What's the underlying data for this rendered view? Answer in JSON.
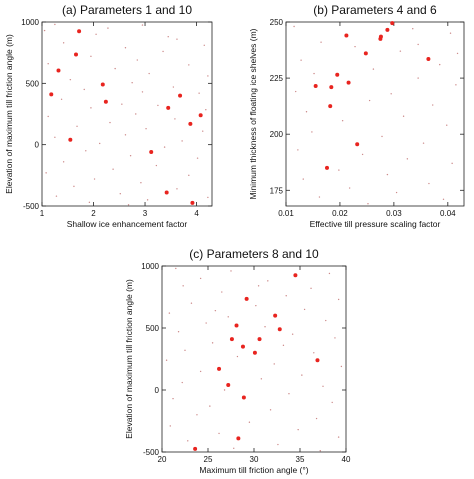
{
  "chart_data": [
    {
      "type": "scatter",
      "title": "(a) Parameters 1 and 10",
      "xlabel": "Shallow ice enhancement factor",
      "ylabel": "Elevation of maximum till friction angle (m)",
      "xlim": [
        1,
        4.3
      ],
      "ylim": [
        -500,
        1000
      ],
      "xticks": [
        1,
        2,
        3,
        4
      ],
      "yticks": [
        -500,
        0,
        500,
        1000
      ],
      "highlight_color": "#e8241f",
      "background_color": "#cc8a8a",
      "highlight_points": [
        {
          "x": 1.72,
          "y": 925
        },
        {
          "x": 1.66,
          "y": 735
        },
        {
          "x": 1.32,
          "y": 605
        },
        {
          "x": 2.18,
          "y": 490
        },
        {
          "x": 1.18,
          "y": 410
        },
        {
          "x": 2.24,
          "y": 350
        },
        {
          "x": 3.68,
          "y": 400
        },
        {
          "x": 3.45,
          "y": 300
        },
        {
          "x": 4.08,
          "y": 240
        },
        {
          "x": 3.88,
          "y": 170
        },
        {
          "x": 1.55,
          "y": 40
        },
        {
          "x": 3.12,
          "y": -60
        },
        {
          "x": 3.42,
          "y": -390
        },
        {
          "x": 3.92,
          "y": -475
        }
      ],
      "background_points": [
        {
          "x": 1.25,
          "y": 980
        },
        {
          "x": 2.95,
          "y": 975
        },
        {
          "x": 1.05,
          "y": 930
        },
        {
          "x": 2.05,
          "y": 900
        },
        {
          "x": 3.62,
          "y": 860
        },
        {
          "x": 1.42,
          "y": 830
        },
        {
          "x": 4.15,
          "y": 810
        },
        {
          "x": 2.62,
          "y": 790
        },
        {
          "x": 3.35,
          "y": 760
        },
        {
          "x": 1.95,
          "y": 720
        },
        {
          "x": 2.85,
          "y": 690
        },
        {
          "x": 1.12,
          "y": 660
        },
        {
          "x": 3.85,
          "y": 650
        },
        {
          "x": 2.42,
          "y": 620
        },
        {
          "x": 3.08,
          "y": 580
        },
        {
          "x": 4.22,
          "y": 560
        },
        {
          "x": 1.55,
          "y": 530
        },
        {
          "x": 2.75,
          "y": 505
        },
        {
          "x": 3.55,
          "y": 470
        },
        {
          "x": 1.82,
          "y": 450
        },
        {
          "x": 2.95,
          "y": 430
        },
        {
          "x": 4.05,
          "y": 420
        },
        {
          "x": 1.38,
          "y": 370
        },
        {
          "x": 2.55,
          "y": 330
        },
        {
          "x": 3.25,
          "y": 320
        },
        {
          "x": 1.95,
          "y": 300
        },
        {
          "x": 4.18,
          "y": 285
        },
        {
          "x": 2.82,
          "y": 250
        },
        {
          "x": 1.12,
          "y": 230
        },
        {
          "x": 3.58,
          "y": 210
        },
        {
          "x": 2.32,
          "y": 180
        },
        {
          "x": 1.68,
          "y": 150
        },
        {
          "x": 3.02,
          "y": 130
        },
        {
          "x": 4.12,
          "y": 110
        },
        {
          "x": 2.62,
          "y": 80
        },
        {
          "x": 1.25,
          "y": 60
        },
        {
          "x": 3.72,
          "y": 30
        },
        {
          "x": 2.12,
          "y": 10
        },
        {
          "x": 3.38,
          "y": -20
        },
        {
          "x": 1.85,
          "y": -50
        },
        {
          "x": 2.72,
          "y": -90
        },
        {
          "x": 4.02,
          "y": -110
        },
        {
          "x": 1.42,
          "y": -140
        },
        {
          "x": 3.22,
          "y": -170
        },
        {
          "x": 2.38,
          "y": -200
        },
        {
          "x": 1.08,
          "y": -230
        },
        {
          "x": 3.85,
          "y": -250
        },
        {
          "x": 2.02,
          "y": -280
        },
        {
          "x": 2.92,
          "y": -310
        },
        {
          "x": 1.62,
          "y": -340
        },
        {
          "x": 3.62,
          "y": -360
        },
        {
          "x": 2.52,
          "y": -400
        },
        {
          "x": 1.28,
          "y": -420
        },
        {
          "x": 4.22,
          "y": -430
        },
        {
          "x": 3.05,
          "y": -450
        },
        {
          "x": 1.92,
          "y": -470
        },
        {
          "x": 2.68,
          "y": -490
        },
        {
          "x": 3.45,
          "y": 880
        },
        {
          "x": 2.28,
          "y": 950
        }
      ]
    },
    {
      "type": "scatter",
      "title": "(b) Parameters 4 and 6",
      "xlabel": "Effective till pressure scaling factor",
      "ylabel": "Minimum thickness of floating ice shelves (m)",
      "xlim": [
        0.01,
        0.043
      ],
      "ylim": [
        168,
        250
      ],
      "xticks": [
        0.01,
        0.02,
        0.03,
        0.04
      ],
      "xtick_labels": [
        "0.01",
        "0.02",
        "0.03",
        "0.04"
      ],
      "yticks": [
        175,
        200,
        225,
        250
      ],
      "highlight_color": "#e8241f",
      "background_color": "#cc8a8a",
      "highlight_points": [
        {
          "x": 0.0297,
          "y": 249.5
        },
        {
          "x": 0.0212,
          "y": 244
        },
        {
          "x": 0.0275,
          "y": 242.5
        },
        {
          "x": 0.0276,
          "y": 243.5
        },
        {
          "x": 0.0288,
          "y": 246.5
        },
        {
          "x": 0.0248,
          "y": 236
        },
        {
          "x": 0.0364,
          "y": 233.5
        },
        {
          "x": 0.0195,
          "y": 226.5
        },
        {
          "x": 0.0155,
          "y": 221.5
        },
        {
          "x": 0.0184,
          "y": 221
        },
        {
          "x": 0.0216,
          "y": 223
        },
        {
          "x": 0.0182,
          "y": 212.5
        },
        {
          "x": 0.0232,
          "y": 195.5
        },
        {
          "x": 0.0176,
          "y": 185
        }
      ],
      "background_points": [
        {
          "x": 0.0115,
          "y": 248
        },
        {
          "x": 0.0335,
          "y": 247
        },
        {
          "x": 0.0405,
          "y": 245
        },
        {
          "x": 0.0165,
          "y": 241
        },
        {
          "x": 0.0228,
          "y": 239
        },
        {
          "x": 0.0312,
          "y": 237
        },
        {
          "x": 0.0128,
          "y": 233
        },
        {
          "x": 0.0385,
          "y": 231
        },
        {
          "x": 0.0262,
          "y": 229
        },
        {
          "x": 0.0152,
          "y": 227
        },
        {
          "x": 0.0345,
          "y": 225
        },
        {
          "x": 0.0415,
          "y": 222
        },
        {
          "x": 0.0118,
          "y": 219
        },
        {
          "x": 0.0295,
          "y": 218
        },
        {
          "x": 0.0255,
          "y": 215
        },
        {
          "x": 0.0372,
          "y": 213
        },
        {
          "x": 0.0138,
          "y": 210
        },
        {
          "x": 0.0318,
          "y": 208
        },
        {
          "x": 0.0205,
          "y": 206
        },
        {
          "x": 0.0398,
          "y": 204
        },
        {
          "x": 0.0148,
          "y": 201
        },
        {
          "x": 0.0278,
          "y": 199
        },
        {
          "x": 0.0355,
          "y": 196
        },
        {
          "x": 0.0122,
          "y": 193
        },
        {
          "x": 0.0242,
          "y": 191
        },
        {
          "x": 0.0325,
          "y": 189
        },
        {
          "x": 0.0408,
          "y": 187
        },
        {
          "x": 0.0198,
          "y": 184
        },
        {
          "x": 0.0288,
          "y": 182
        },
        {
          "x": 0.0132,
          "y": 180
        },
        {
          "x": 0.0365,
          "y": 178
        },
        {
          "x": 0.0218,
          "y": 176
        },
        {
          "x": 0.0305,
          "y": 174
        },
        {
          "x": 0.0162,
          "y": 172
        },
        {
          "x": 0.0392,
          "y": 171
        },
        {
          "x": 0.0252,
          "y": 169
        },
        {
          "x": 0.0345,
          "y": 240
        },
        {
          "x": 0.0418,
          "y": 236
        }
      ]
    },
    {
      "type": "scatter",
      "title": "(c) Parameters 8 and 10",
      "xlabel": "Maximum till friction angle (°)",
      "ylabel": "Elevation of maximum till friction angle (m)",
      "xlim": [
        20,
        40
      ],
      "ylim": [
        -500,
        1000
      ],
      "xticks": [
        20,
        25,
        30,
        35,
        40
      ],
      "yticks": [
        -500,
        0,
        500,
        1000
      ],
      "highlight_color": "#e8241f",
      "background_color": "#cc8a8a",
      "highlight_points": [
        {
          "x": 34.5,
          "y": 925
        },
        {
          "x": 29.2,
          "y": 735
        },
        {
          "x": 32.3,
          "y": 600
        },
        {
          "x": 28.1,
          "y": 520
        },
        {
          "x": 32.8,
          "y": 490
        },
        {
          "x": 27.6,
          "y": 410
        },
        {
          "x": 30.6,
          "y": 410
        },
        {
          "x": 28.8,
          "y": 350
        },
        {
          "x": 30.1,
          "y": 300
        },
        {
          "x": 36.9,
          "y": 240
        },
        {
          "x": 26.2,
          "y": 170
        },
        {
          "x": 27.2,
          "y": 40
        },
        {
          "x": 28.9,
          "y": -60
        },
        {
          "x": 28.3,
          "y": -390
        },
        {
          "x": 23.6,
          "y": -475
        }
      ],
      "background_points": [
        {
          "x": 21.5,
          "y": 980
        },
        {
          "x": 27.5,
          "y": 960
        },
        {
          "x": 38.2,
          "y": 940
        },
        {
          "x": 24.2,
          "y": 900
        },
        {
          "x": 31.5,
          "y": 880
        },
        {
          "x": 22.3,
          "y": 840
        },
        {
          "x": 36.2,
          "y": 820
        },
        {
          "x": 26.5,
          "y": 790
        },
        {
          "x": 33.5,
          "y": 760
        },
        {
          "x": 39.2,
          "y": 730
        },
        {
          "x": 23.2,
          "y": 700
        },
        {
          "x": 30.2,
          "y": 680
        },
        {
          "x": 35.5,
          "y": 650
        },
        {
          "x": 20.8,
          "y": 620
        },
        {
          "x": 27.2,
          "y": 590
        },
        {
          "x": 37.8,
          "y": 560
        },
        {
          "x": 24.8,
          "y": 540
        },
        {
          "x": 31.2,
          "y": 510
        },
        {
          "x": 21.8,
          "y": 470
        },
        {
          "x": 34.2,
          "y": 450
        },
        {
          "x": 38.8,
          "y": 420
        },
        {
          "x": 25.5,
          "y": 380
        },
        {
          "x": 33.2,
          "y": 360
        },
        {
          "x": 22.5,
          "y": 320
        },
        {
          "x": 36.5,
          "y": 300
        },
        {
          "x": 28.2,
          "y": 270
        },
        {
          "x": 20.5,
          "y": 240
        },
        {
          "x": 32.2,
          "y": 210
        },
        {
          "x": 39.5,
          "y": 190
        },
        {
          "x": 24.2,
          "y": 150
        },
        {
          "x": 35.2,
          "y": 120
        },
        {
          "x": 30.8,
          "y": 90
        },
        {
          "x": 22.2,
          "y": 60
        },
        {
          "x": 37.5,
          "y": 30
        },
        {
          "x": 26.8,
          "y": 0
        },
        {
          "x": 33.8,
          "y": -30
        },
        {
          "x": 21.2,
          "y": -70
        },
        {
          "x": 38.5,
          "y": -100
        },
        {
          "x": 25.2,
          "y": -130
        },
        {
          "x": 31.8,
          "y": -160
        },
        {
          "x": 23.8,
          "y": -200
        },
        {
          "x": 36.8,
          "y": -230
        },
        {
          "x": 29.5,
          "y": -260
        },
        {
          "x": 20.9,
          "y": -290
        },
        {
          "x": 34.8,
          "y": -320
        },
        {
          "x": 26.2,
          "y": -350
        },
        {
          "x": 39.2,
          "y": -380
        },
        {
          "x": 22.8,
          "y": -410
        },
        {
          "x": 32.6,
          "y": -440
        },
        {
          "x": 27.8,
          "y": -470
        },
        {
          "x": 37.2,
          "y": -490
        },
        {
          "x": 30.5,
          "y": 840
        },
        {
          "x": 25.8,
          "y": 640
        }
      ]
    }
  ]
}
